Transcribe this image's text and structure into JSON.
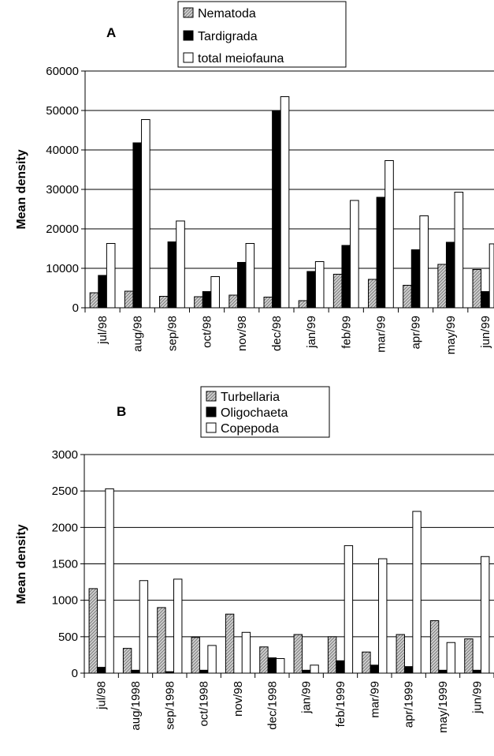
{
  "colors": {
    "hatched": "#bdbdbd",
    "solid": "#000000",
    "open": "#ffffff",
    "frame": "#000000"
  },
  "chart_data": [
    {
      "type": "bar",
      "panel_label": "A",
      "ylabel": "Mean density",
      "ylim": [
        0,
        60000
      ],
      "yticks": [
        "0",
        "10000",
        "20000",
        "30000",
        "40000",
        "50000",
        "60000"
      ],
      "ytick_values": [
        0,
        10000,
        20000,
        30000,
        40000,
        50000,
        60000
      ],
      "grid": true,
      "legend_position": "top-center",
      "categories": [
        "jul/98",
        "aug/98",
        "sep/98",
        "oct/98",
        "nov/98",
        "dec/98",
        "jan/99",
        "feb/99",
        "mar/99",
        "apr/99",
        "may/99",
        "jun/99"
      ],
      "series": [
        {
          "name": "Nematoda",
          "style": "hatched",
          "values": [
            3800,
            4200,
            2900,
            2800,
            3200,
            2700,
            1800,
            8500,
            7200,
            5700,
            11000,
            9700
          ]
        },
        {
          "name": "Tardigrada",
          "style": "solid",
          "values": [
            8200,
            41800,
            16700,
            4100,
            11500,
            50000,
            9200,
            15800,
            28000,
            14700,
            16600,
            4100
          ]
        },
        {
          "name": "total meiofauna",
          "style": "open",
          "values": [
            16300,
            47700,
            22000,
            7900,
            16300,
            53500,
            11700,
            27200,
            37300,
            23300,
            29300,
            16200
          ]
        }
      ]
    },
    {
      "type": "bar",
      "panel_label": "B",
      "ylabel": "Mean density",
      "ylim": [
        0,
        3000
      ],
      "yticks": [
        "0",
        "500",
        "1000",
        "1500",
        "2000",
        "2500",
        "3000"
      ],
      "ytick_values": [
        0,
        500,
        1000,
        1500,
        2000,
        2500,
        3000
      ],
      "grid": true,
      "legend_position": "top-center",
      "categories": [
        "jul/98",
        "aug/1998",
        "sep/1998",
        "oct/1998",
        "nov/98",
        "dec/1998",
        "jan/99",
        "feb/1999",
        "mar/99",
        "apr/1999",
        "may/1999",
        "jun/99"
      ],
      "series": [
        {
          "name": "Turbellaria",
          "style": "hatched",
          "values": [
            1160,
            340,
            900,
            490,
            810,
            360,
            530,
            500,
            290,
            530,
            720,
            470
          ]
        },
        {
          "name": "Oligochaeta",
          "style": "solid",
          "values": [
            80,
            40,
            20,
            40,
            0,
            210,
            40,
            170,
            110,
            90,
            40,
            40
          ]
        },
        {
          "name": "Copepoda",
          "style": "open",
          "values": [
            2530,
            1270,
            1290,
            380,
            560,
            200,
            110,
            1750,
            1570,
            2220,
            420,
            1600
          ]
        }
      ]
    }
  ]
}
